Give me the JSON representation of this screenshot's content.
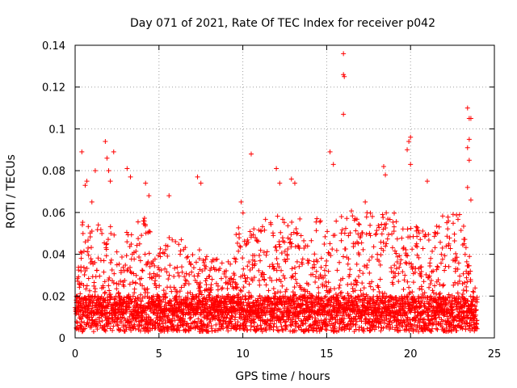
{
  "chart_data": {
    "type": "scatter",
    "title": "Day 071 of 2021, Rate Of TEC Index for receiver p042",
    "xlabel": "GPS time / hours",
    "ylabel": "ROTI / TECUs",
    "xlim": [
      0,
      25
    ],
    "ylim": [
      0,
      0.14
    ],
    "xticks": [
      0,
      5,
      10,
      15,
      20,
      25
    ],
    "yticks": [
      0,
      0.02,
      0.04,
      0.06,
      0.08,
      0.1,
      0.12,
      0.14
    ],
    "xtick_labels": [
      "0",
      "5",
      "10",
      "15",
      "20",
      "25"
    ],
    "ytick_labels": [
      "0",
      "0.02",
      "0.04",
      "0.06",
      "0.08",
      "0.1",
      "0.12",
      "0.14"
    ],
    "grid": true,
    "marker": "+",
    "series_color": "#ff0000",
    "series": [
      {
        "name": "ROTI",
        "points": [
          [
            0.4,
            0.089
          ],
          [
            0.6,
            0.073
          ],
          [
            0.7,
            0.075
          ],
          [
            1.0,
            0.065
          ],
          [
            1.2,
            0.08
          ],
          [
            1.8,
            0.094
          ],
          [
            1.9,
            0.086
          ],
          [
            2.0,
            0.08
          ],
          [
            2.3,
            0.089
          ],
          [
            3.1,
            0.081
          ],
          [
            3.3,
            0.077
          ],
          [
            4.2,
            0.074
          ],
          [
            4.4,
            0.068
          ],
          [
            7.3,
            0.077
          ],
          [
            7.5,
            0.074
          ],
          [
            10.5,
            0.088
          ],
          [
            12.0,
            0.081
          ],
          [
            12.2,
            0.074
          ],
          [
            12.9,
            0.076
          ],
          [
            13.1,
            0.074
          ],
          [
            15.2,
            0.089
          ],
          [
            15.4,
            0.083
          ],
          [
            16.0,
            0.136
          ],
          [
            16.0,
            0.126
          ],
          [
            16.05,
            0.125
          ],
          [
            16.0,
            0.107
          ],
          [
            17.3,
            0.065
          ],
          [
            18.4,
            0.082
          ],
          [
            18.5,
            0.078
          ],
          [
            19.8,
            0.09
          ],
          [
            19.9,
            0.094
          ],
          [
            20.0,
            0.096
          ],
          [
            20.0,
            0.083
          ],
          [
            21.0,
            0.075
          ],
          [
            23.4,
            0.11
          ],
          [
            23.5,
            0.105
          ],
          [
            23.6,
            0.105
          ],
          [
            23.5,
            0.095
          ],
          [
            23.4,
            0.091
          ],
          [
            23.5,
            0.085
          ],
          [
            23.4,
            0.072
          ],
          [
            23.6,
            0.066
          ],
          [
            2.1,
            0.075
          ],
          [
            5.6,
            0.068
          ],
          [
            9.9,
            0.065
          ]
        ],
        "dense_band": {
          "x_range": [
            0,
            24
          ],
          "step_hours": 0.05,
          "baseline_min": 0.003,
          "baseline_max": 0.02,
          "burst_envelope": [
            [
              0.0,
              0.02
            ],
            [
              0.5,
              0.06
            ],
            [
              1.0,
              0.055
            ],
            [
              1.8,
              0.06
            ],
            [
              2.5,
              0.045
            ],
            [
              3.0,
              0.05
            ],
            [
              4.0,
              0.06
            ],
            [
              5.0,
              0.045
            ],
            [
              6.0,
              0.05
            ],
            [
              7.0,
              0.045
            ],
            [
              8.0,
              0.04
            ],
            [
              9.0,
              0.035
            ],
            [
              10.0,
              0.06
            ],
            [
              11.0,
              0.055
            ],
            [
              12.0,
              0.06
            ],
            [
              13.0,
              0.055
            ],
            [
              14.0,
              0.06
            ],
            [
              15.0,
              0.055
            ],
            [
              16.0,
              0.065
            ],
            [
              17.0,
              0.06
            ],
            [
              18.0,
              0.06
            ],
            [
              19.0,
              0.06
            ],
            [
              20.0,
              0.055
            ],
            [
              21.0,
              0.05
            ],
            [
              22.0,
              0.06
            ],
            [
              23.0,
              0.06
            ],
            [
              24.0,
              0.02
            ]
          ]
        }
      }
    ]
  }
}
